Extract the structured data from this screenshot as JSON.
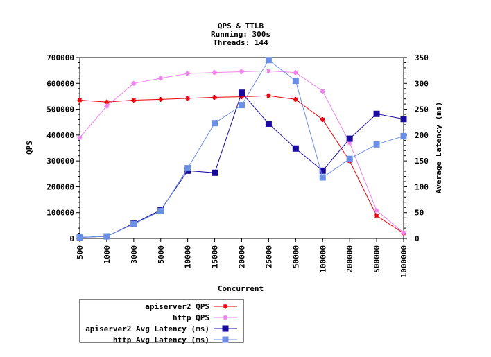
{
  "chart_data": {
    "type": "line",
    "title": [
      "QPS & TTLB",
      "Running: 300s",
      "Threads: 144"
    ],
    "xlabel": "Concurrent",
    "ylabel": "QPS",
    "y2label": "Average Latency (ms)",
    "categories": [
      "500",
      "1000",
      "3000",
      "5000",
      "10000",
      "15000",
      "20000",
      "25000",
      "50000",
      "100000",
      "200000",
      "500000",
      "1000000"
    ],
    "ylim": [
      0,
      700000
    ],
    "y2lim": [
      0,
      350
    ],
    "yticks": [
      "0",
      "100000",
      "200000",
      "300000",
      "400000",
      "500000",
      "600000",
      "700000"
    ],
    "y2ticks": [
      "0",
      "50",
      "100",
      "150",
      "200",
      "250",
      "300",
      "350"
    ],
    "grid": false,
    "legend_position": "bottom-left",
    "series": [
      {
        "name": "apiserver2 QPS",
        "axis": "left",
        "color": "#e8000b",
        "marker": "star",
        "values": [
          535000,
          528000,
          535000,
          538000,
          542000,
          546000,
          548000,
          552000,
          538000,
          460000,
          300000,
          88000,
          20000
        ]
      },
      {
        "name": "http QPS",
        "axis": "left",
        "color": "#ee82ee",
        "marker": "star",
        "values": [
          390000,
          512000,
          600000,
          620000,
          638000,
          642000,
          645000,
          648000,
          642000,
          570000,
          370000,
          108000,
          22000
        ]
      },
      {
        "name": "apiserver2 Avg Latency (ms)",
        "axis": "right",
        "color": "#1a0b9e",
        "marker": "square",
        "values": [
          2,
          4,
          29,
          55,
          131,
          127,
          282,
          222,
          174,
          131,
          193,
          241,
          231
        ]
      },
      {
        "name": "http Avg Latency (ms)",
        "axis": "right",
        "color": "#6b8fe6",
        "marker": "square",
        "values": [
          2,
          4,
          28,
          53,
          136,
          223,
          258,
          345,
          305,
          118,
          154,
          182,
          198
        ]
      }
    ]
  }
}
